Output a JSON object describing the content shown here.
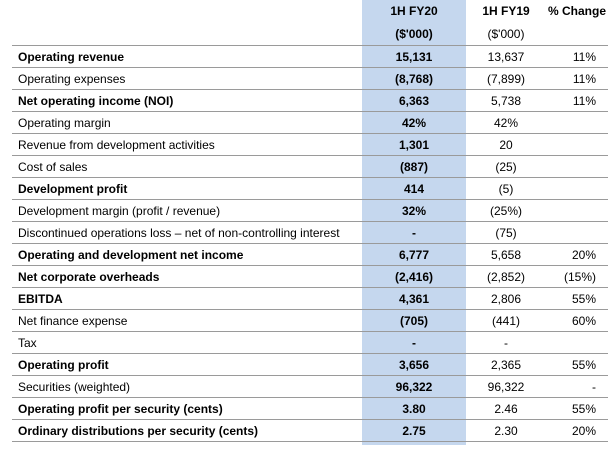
{
  "header": {
    "current_period": "1H FY20",
    "prior_period": "1H FY19",
    "change": "% Change",
    "current_unit": "($'000)",
    "prior_unit": "($'000)"
  },
  "rows": [
    {
      "label": "Operating revenue",
      "current": "15,131",
      "prior": "13,637",
      "change": "11%",
      "bold": true
    },
    {
      "label": "Operating expenses",
      "current": "(8,768)",
      "prior": "(7,899)",
      "change": "11%",
      "bold": false
    },
    {
      "label": "Net operating income (NOI)",
      "current": "6,363",
      "prior": "5,738",
      "change": "11%",
      "bold": true
    },
    {
      "label": "Operating margin",
      "current": "42%",
      "prior": "42%",
      "change": "",
      "bold": false
    },
    {
      "label": "Revenue from development activities",
      "current": "1,301",
      "prior": "20",
      "change": "",
      "bold": false
    },
    {
      "label": "Cost of sales",
      "current": "(887)",
      "prior": "(25)",
      "change": "",
      "bold": false
    },
    {
      "label": "Development profit",
      "current": "414",
      "prior": "(5)",
      "change": "",
      "bold": true
    },
    {
      "label": "Development margin (profit / revenue)",
      "current": "32%",
      "prior": "(25%)",
      "change": "",
      "bold": false
    },
    {
      "label": "Discontinued operations loss – net of non-controlling interest",
      "current": "-",
      "prior": "(75)",
      "change": "",
      "bold": false
    },
    {
      "label": "Operating and development net income",
      "current": "6,777",
      "prior": "5,658",
      "change": "20%",
      "bold": true
    },
    {
      "label": "Net corporate overheads",
      "current": "(2,416)",
      "prior": "(2,852)",
      "change": "(15%)",
      "bold": true
    },
    {
      "label": "EBITDA",
      "current": "4,361",
      "prior": "2,806",
      "change": "55%",
      "bold": true
    },
    {
      "label": "Net finance expense",
      "current": "(705)",
      "prior": "(441)",
      "change": "60%",
      "bold": false
    },
    {
      "label": "Tax",
      "current": "-",
      "prior": "-",
      "change": "",
      "bold": false
    },
    {
      "label": "Operating profit",
      "current": "3,656",
      "prior": "2,365",
      "change": "55%",
      "bold": true
    },
    {
      "label": "Securities (weighted)",
      "current": "96,322",
      "prior": "96,322",
      "change": "-",
      "bold": false
    },
    {
      "label": "Operating profit per security (cents)",
      "current": "3.80",
      "prior": "2.46",
      "change": "55%",
      "bold": true
    },
    {
      "label": "Ordinary distributions per security (cents)",
      "current": "2.75",
      "prior": "2.30",
      "change": "20%",
      "bold": true
    }
  ],
  "colors": {
    "highlight_column": "#c5d7ee",
    "row_rule": "#9a9a9a"
  }
}
